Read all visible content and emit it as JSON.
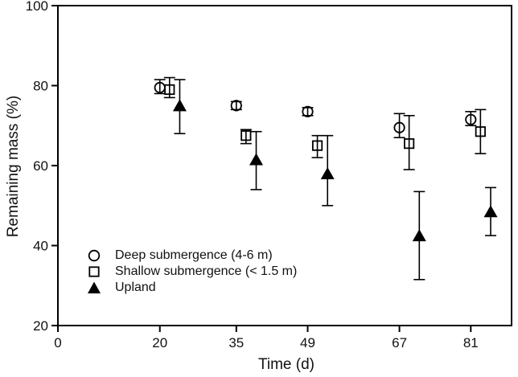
{
  "figure": {
    "background": "#ffffff",
    "foreground": "#000000",
    "text_color": "#111111"
  },
  "chart_data": {
    "type": "scatter",
    "title": "",
    "xlabel": "Time (d)",
    "ylabel": "Remaining mass (%)",
    "xlim": [
      0,
      89
    ],
    "ylim": [
      20,
      100
    ],
    "x_ticks": [
      0,
      20,
      35,
      49,
      67,
      81
    ],
    "y_ticks": [
      20,
      40,
      60,
      80,
      100
    ],
    "grid": false,
    "legend_position": "inside-lower-left",
    "error_bars": "vertical, capped, symmetric-ish",
    "series": [
      {
        "name": "Deep submergence (4-6 m)",
        "marker": "open-circle",
        "color": "#000000",
        "x_offset": 0,
        "points": [
          {
            "x": 20,
            "y": 79.5,
            "lo": 78.0,
            "hi": 81.5
          },
          {
            "x": 35,
            "y": 75.0,
            "lo": 74.0,
            "hi": 76.0
          },
          {
            "x": 49,
            "y": 73.5,
            "lo": 72.5,
            "hi": 74.5
          },
          {
            "x": 67,
            "y": 69.5,
            "lo": 67.0,
            "hi": 73.0
          },
          {
            "x": 81,
            "y": 71.5,
            "lo": 70.0,
            "hi": 73.5
          }
        ]
      },
      {
        "name": "Shallow submergence (< 1.5 m)",
        "marker": "open-square",
        "color": "#000000",
        "x_offset": 1.9,
        "points": [
          {
            "x": 20,
            "y": 79.0,
            "lo": 77.0,
            "hi": 82.0
          },
          {
            "x": 35,
            "y": 67.5,
            "lo": 65.5,
            "hi": 69.0
          },
          {
            "x": 49,
            "y": 65.0,
            "lo": 62.0,
            "hi": 67.5
          },
          {
            "x": 67,
            "y": 65.5,
            "lo": 59.0,
            "hi": 72.5
          },
          {
            "x": 81,
            "y": 68.5,
            "lo": 63.0,
            "hi": 74.0
          }
        ]
      },
      {
        "name": "Upland",
        "marker": "filled-triangle",
        "color": "#000000",
        "x_offset": 3.9,
        "points": [
          {
            "x": 20,
            "y": 75.0,
            "lo": 68.0,
            "hi": 81.5
          },
          {
            "x": 35,
            "y": 61.5,
            "lo": 54.0,
            "hi": 68.5
          },
          {
            "x": 49,
            "y": 58.0,
            "lo": 50.0,
            "hi": 67.5
          },
          {
            "x": 67,
            "y": 42.5,
            "lo": 31.5,
            "hi": 53.5
          },
          {
            "x": 81,
            "y": 48.5,
            "lo": 42.5,
            "hi": 54.5
          }
        ]
      }
    ]
  }
}
